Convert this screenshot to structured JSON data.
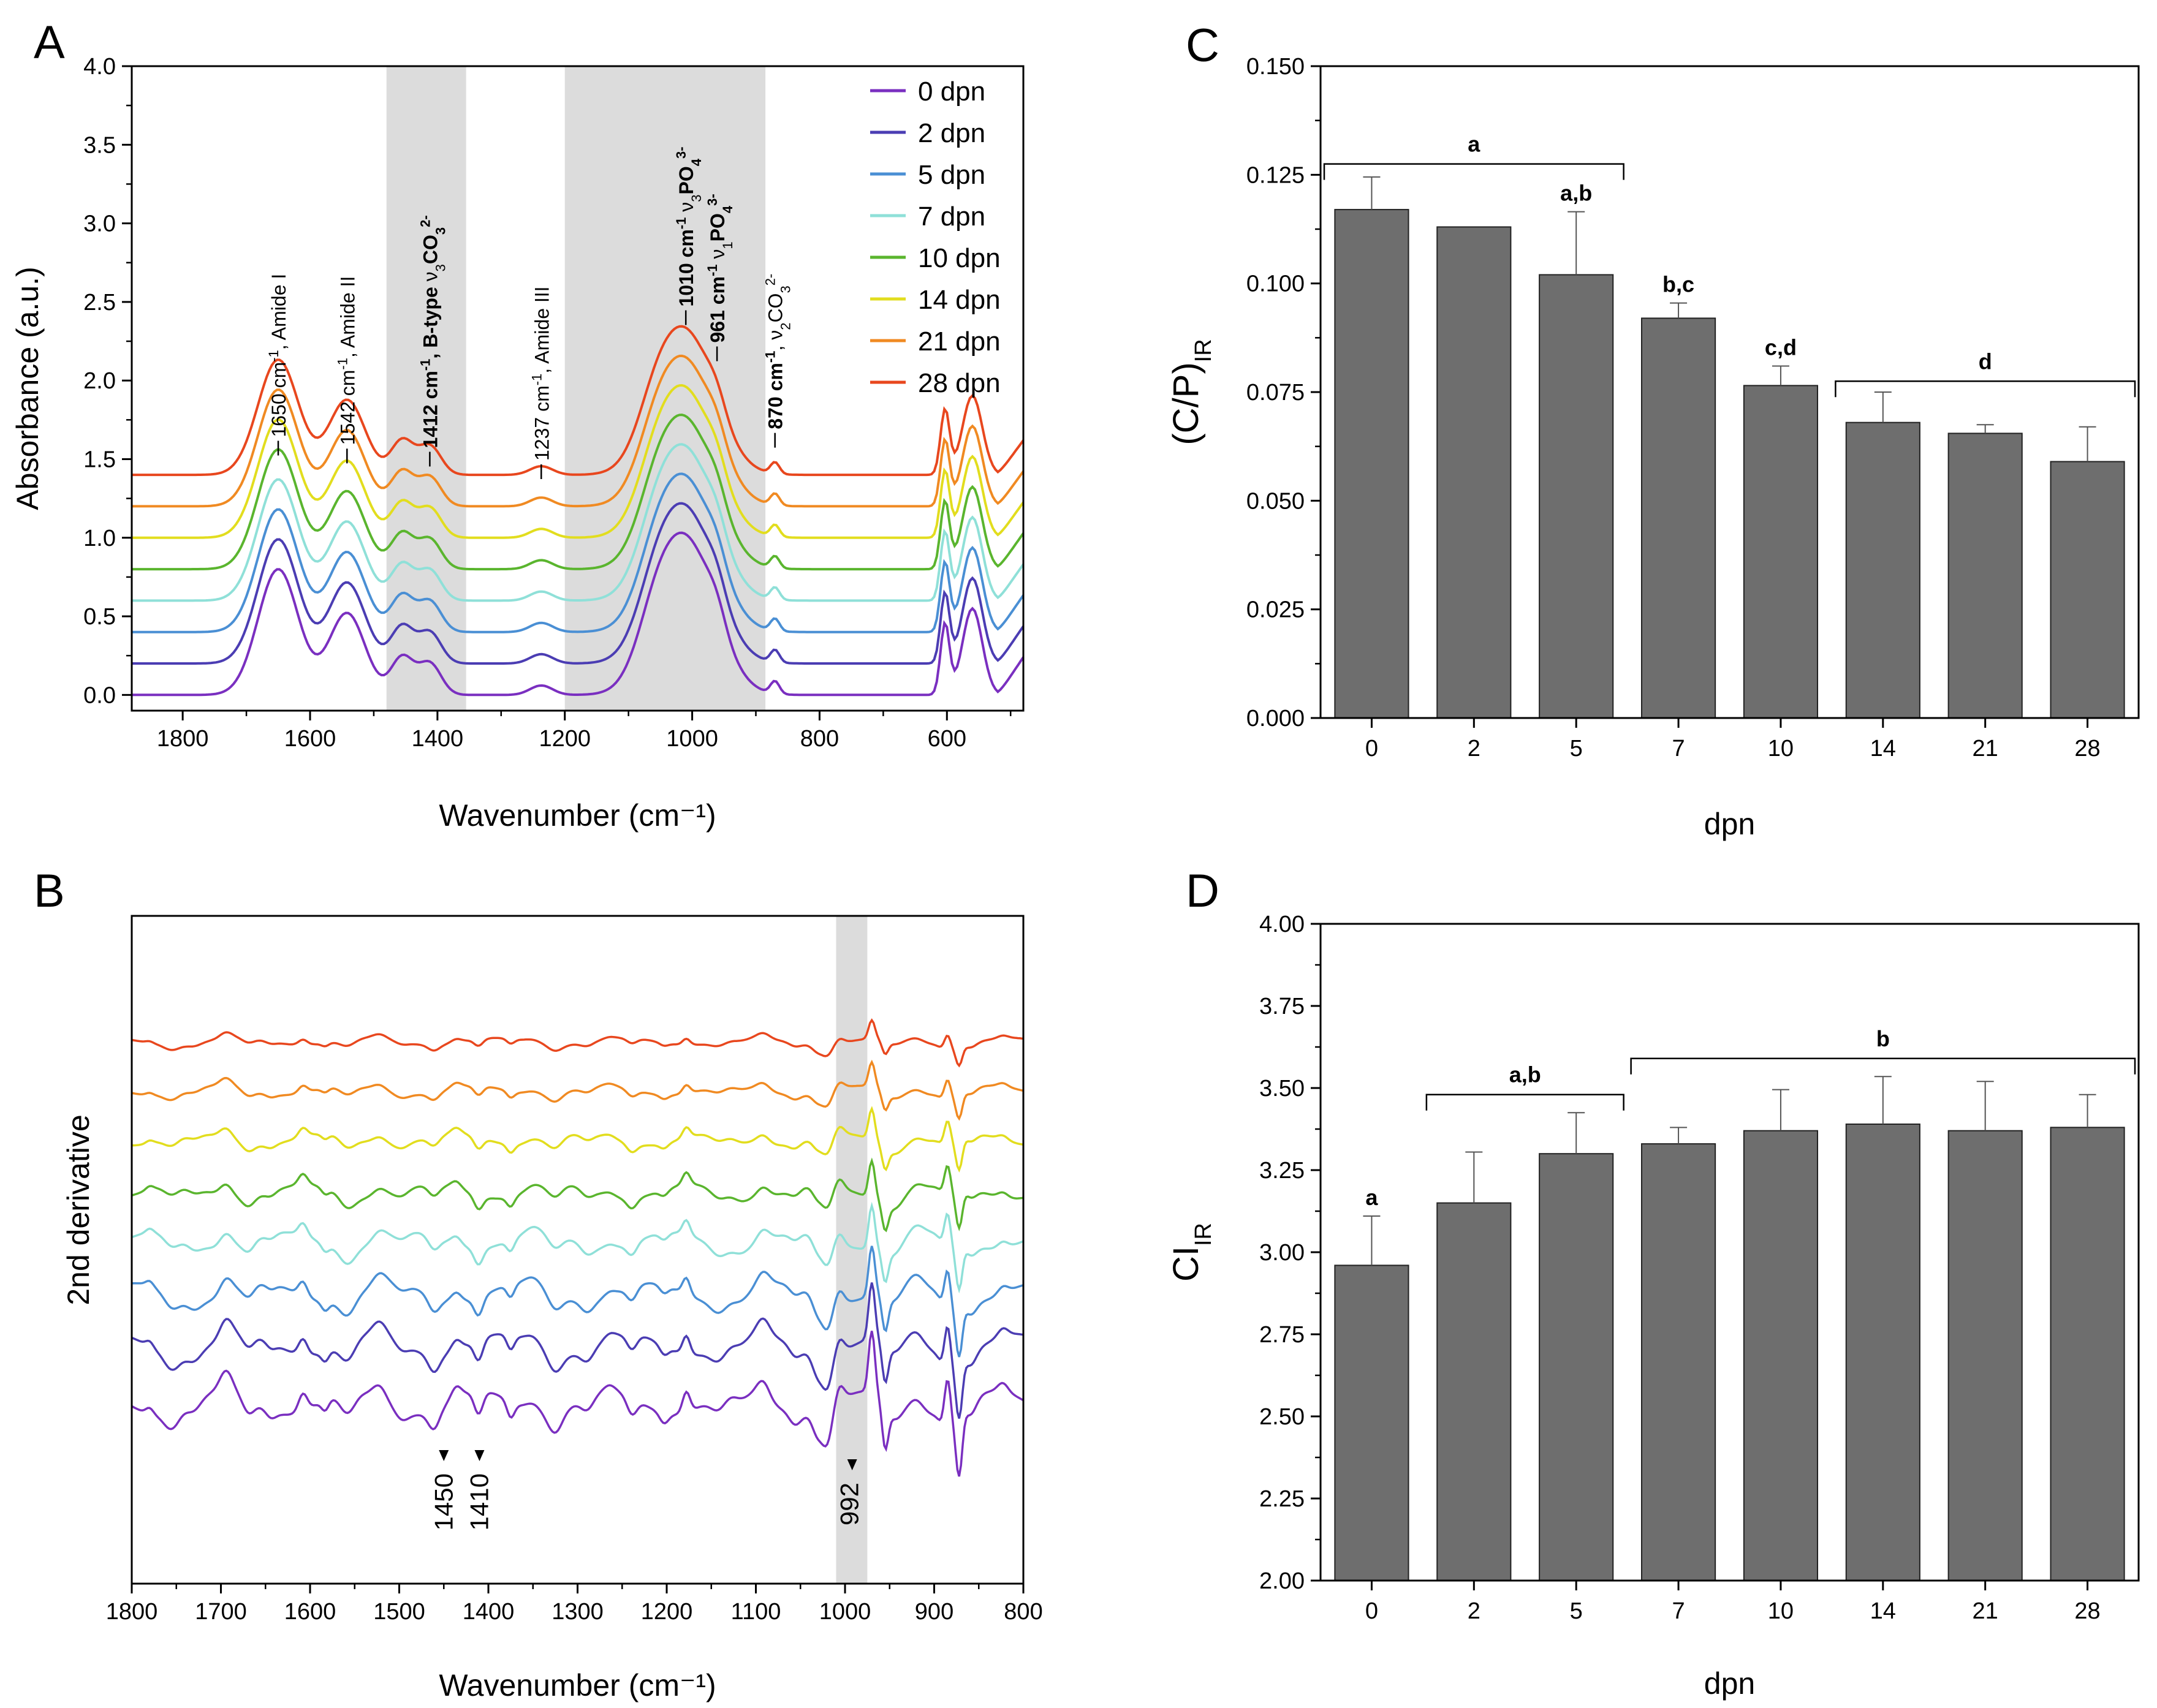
{
  "palette": [
    "#7a2fc0",
    "#4b3db3",
    "#4a8fd4",
    "#8fe0d8",
    "#5ab52e",
    "#e2dd1e",
    "#f08a22",
    "#e8471e"
  ],
  "chart_data": [
    {
      "id": "A",
      "type": "line",
      "panel_label": "A",
      "xlabel": "Wavenumber (cm⁻¹)",
      "ylabel": "Absorbance (a.u.)",
      "xlim": [
        1880,
        480
      ],
      "ylim": [
        -0.1,
        4.0
      ],
      "x_ticks": [
        1800,
        1600,
        1400,
        1200,
        1000,
        800,
        600
      ],
      "y_ticks": [
        "0.0",
        "0.5",
        "1.0",
        "1.5",
        "2.0",
        "2.5",
        "3.0",
        "3.5",
        "4.0"
      ],
      "shaded_regions": [
        [
          1480,
          1355
        ],
        [
          1200,
          885
        ]
      ],
      "offset_step": 0.2,
      "series": [
        {
          "name": "0 dpn",
          "offset": 0.0
        },
        {
          "name": "2 dpn",
          "offset": 0.2
        },
        {
          "name": "5 dpn",
          "offset": 0.4
        },
        {
          "name": "7 dpn",
          "offset": 0.6
        },
        {
          "name": "10 dpn",
          "offset": 0.8
        },
        {
          "name": "14 dpn",
          "offset": 1.0
        },
        {
          "name": "21 dpn",
          "offset": 1.2
        },
        {
          "name": "28 dpn",
          "offset": 1.4
        }
      ],
      "peaks": [
        {
          "x": 1650,
          "w": 45,
          "h": 0.8
        },
        {
          "x": 1542,
          "w": 40,
          "h": 0.52
        },
        {
          "x": 1455,
          "w": 25,
          "h": 0.24
        },
        {
          "x": 1412,
          "w": 25,
          "h": 0.2
        },
        {
          "x": 1237,
          "w": 25,
          "h": 0.06
        },
        {
          "x": 1010,
          "w": 65,
          "h": 0.98
        },
        {
          "x": 1060,
          "w": 40,
          "h": 0.2
        },
        {
          "x": 961,
          "w": 20,
          "h": 0.1
        },
        {
          "x": 870,
          "w": 10,
          "h": 0.08
        },
        {
          "x": 603,
          "w": 10,
          "h": 0.45
        },
        {
          "x": 560,
          "w": 22,
          "h": 0.55
        }
      ],
      "annotations": [
        {
          "x": 1650,
          "y": 1.57,
          "parts": [
            {
              "t": "1650 cm",
              "b": false
            },
            {
              "t": "-1",
              "b": false,
              "sup": true
            },
            {
              "t": ", Amide I",
              "b": false
            }
          ]
        },
        {
          "x": 1542,
          "y": 1.52,
          "parts": [
            {
              "t": "1542 cm",
              "b": false
            },
            {
              "t": "-1",
              "b": false,
              "sup": true
            },
            {
              "t": ", Amide II",
              "b": false
            }
          ]
        },
        {
          "x": 1412,
          "y": 1.5,
          "parts": [
            {
              "t": "1412 cm",
              "b": true
            },
            {
              "t": "-1",
              "b": true,
              "sup": true
            },
            {
              "t": ", B-type ",
              "b": true
            },
            {
              "t": "ν",
              "b": false
            },
            {
              "t": "3",
              "b": false,
              "sub": true
            },
            {
              "t": "CO",
              "b": true
            },
            {
              "t": "3",
              "b": true,
              "sub": true
            },
            {
              "t": "2-",
              "b": true,
              "sup": true
            }
          ]
        },
        {
          "x": 1237,
          "y": 1.42,
          "parts": [
            {
              "t": "1237 cm",
              "b": false
            },
            {
              "t": "-1",
              "b": false,
              "sup": true
            },
            {
              "t": ", Amide III",
              "b": false
            }
          ]
        },
        {
          "x": 1010,
          "y": 2.4,
          "parts": [
            {
              "t": "1010 cm",
              "b": true
            },
            {
              "t": "-1",
              "b": true,
              "sup": true
            },
            {
              "t": " ν",
              "b": false
            },
            {
              "t": "3",
              "b": false,
              "sub": true
            },
            {
              "t": "PO",
              "b": true
            },
            {
              "t": "4",
              "b": true,
              "sub": true
            },
            {
              "t": "3-",
              "b": true,
              "sup": true
            }
          ]
        },
        {
          "x": 961,
          "y": 2.17,
          "parts": [
            {
              "t": "961 cm",
              "b": true
            },
            {
              "t": "-1",
              "b": true,
              "sup": true
            },
            {
              "t": " ν",
              "b": false
            },
            {
              "t": "1",
              "b": false,
              "sub": true
            },
            {
              "t": "PO",
              "b": true
            },
            {
              "t": "4",
              "b": true,
              "sub": true
            },
            {
              "t": "3-",
              "b": true,
              "sup": true
            }
          ]
        },
        {
          "x": 870,
          "y": 1.62,
          "parts": [
            {
              "t": "870 cm",
              "b": true
            },
            {
              "t": "-1",
              "b": true,
              "sup": true
            },
            {
              "t": ", ν",
              "b": false
            },
            {
              "t": "2",
              "b": false,
              "sub": true
            },
            {
              "t": "CO",
              "b": false
            },
            {
              "t": "3",
              "b": false,
              "sub": true
            },
            {
              "t": "2-",
              "b": false,
              "sup": true
            }
          ]
        }
      ]
    },
    {
      "id": "B",
      "type": "line",
      "panel_label": "B",
      "xlabel": "Wavenumber (cm⁻¹)",
      "ylabel": "2nd derivative",
      "xlim": [
        1800,
        800
      ],
      "x_ticks": [
        1800,
        1700,
        1600,
        1500,
        1400,
        1300,
        1200,
        1100,
        1000,
        900,
        800
      ],
      "shaded_regions": [
        [
          1010,
          975
        ]
      ],
      "series": [
        "0 dpn",
        "2 dpn",
        "5 dpn",
        "7 dpn",
        "10 dpn",
        "14 dpn",
        "21 dpn",
        "28 dpn"
      ],
      "markers": [
        {
          "x": 1450,
          "label": "1450"
        },
        {
          "x": 1410,
          "label": "1410"
        },
        {
          "x": 992,
          "label": "992"
        }
      ]
    },
    {
      "id": "C",
      "type": "bar",
      "panel_label": "C",
      "xlabel": "dpn",
      "ylabel_main": "(C/P)",
      "ylabel_sub": "IR",
      "categories": [
        "0",
        "2",
        "5",
        "7",
        "10",
        "14",
        "21",
        "28"
      ],
      "values": [
        0.117,
        0.113,
        0.102,
        0.092,
        0.0765,
        0.068,
        0.0655,
        0.059
      ],
      "errors": [
        0.0075,
        0.0,
        0.0145,
        0.0035,
        0.0045,
        0.007,
        0.002,
        0.008
      ],
      "ylim": [
        0,
        0.15
      ],
      "y_ticks": [
        "0.000",
        "0.025",
        "0.050",
        "0.075",
        "0.100",
        "0.125",
        "0.150"
      ],
      "y_minor_step": 0.0125,
      "significance": [
        {
          "label": "a",
          "from": 0,
          "to": 2,
          "y": 0.1275,
          "type": "bracket"
        },
        {
          "label": "a,b",
          "index": 2,
          "type": "single"
        },
        {
          "label": "b,c",
          "index": 3,
          "type": "single"
        },
        {
          "label": "c,d",
          "index": 4,
          "type": "single"
        },
        {
          "label": "d",
          "from": 5,
          "to": 7,
          "y": 0.0775,
          "type": "bracket"
        }
      ]
    },
    {
      "id": "D",
      "type": "bar",
      "panel_label": "D",
      "xlabel": "dpn",
      "ylabel_main": "CI",
      "ylabel_sub": "IR",
      "categories": [
        "0",
        "2",
        "5",
        "7",
        "10",
        "14",
        "21",
        "28"
      ],
      "values": [
        2.96,
        3.15,
        3.3,
        3.33,
        3.37,
        3.39,
        3.37,
        3.38
      ],
      "errors": [
        0.15,
        0.155,
        0.125,
        0.05,
        0.125,
        0.145,
        0.15,
        0.1
      ],
      "ylim": [
        2.0,
        4.0
      ],
      "y_ticks": [
        "2.00",
        "2.25",
        "2.50",
        "2.75",
        "3.00",
        "3.25",
        "3.50",
        "3.75",
        "4.00"
      ],
      "y_minor_step": 0.125,
      "significance": [
        {
          "label": "a",
          "index": 0,
          "type": "single"
        },
        {
          "label": "a,b",
          "from": 1,
          "to": 2,
          "y": 3.48,
          "type": "bracket"
        },
        {
          "label": "b",
          "from": 3,
          "to": 7,
          "y": 3.59,
          "type": "bracket"
        }
      ]
    }
  ]
}
